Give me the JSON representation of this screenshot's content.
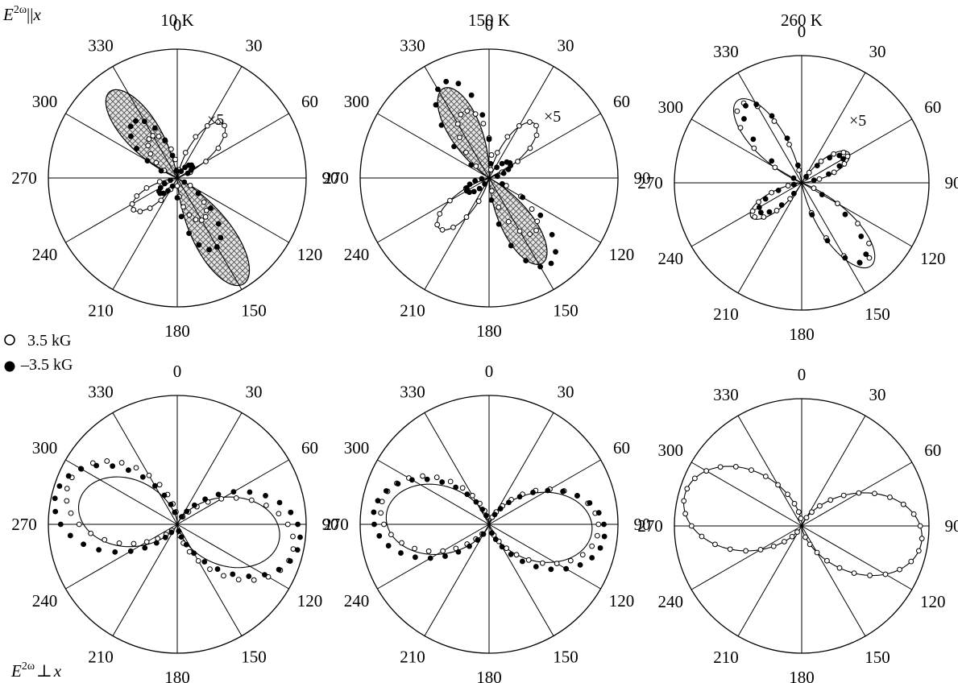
{
  "figure": {
    "row_labels": {
      "top": {
        "main": "E",
        "sup": "2ω",
        "rel": "||",
        "var": "x"
      },
      "bottom": {
        "main": "E",
        "sup": "2ω",
        "rel": "⊥",
        "var": "x"
      }
    },
    "legend": [
      {
        "label": "3.5 kG",
        "marker": "open-circle"
      },
      {
        "label": "–3.5 kG",
        "marker": "filled-circle"
      }
    ],
    "multiplier": "×5",
    "angle_ticks": [
      "0",
      "30",
      "60",
      "90",
      "120",
      "150",
      "180",
      "210",
      "240",
      "270",
      "300",
      "330"
    ]
  },
  "chart_data": [
    {
      "type": "polar",
      "panel": "top-10K",
      "title": "10 K",
      "polarization": "parallel",
      "annotation": "×5",
      "angles_deg": [
        0,
        30,
        60,
        90,
        120,
        150,
        180,
        210,
        240,
        270,
        300,
        330
      ],
      "theta_zero": "top",
      "theta_direction": "clockwise",
      "shape_model": "lobes",
      "series": [
        {
          "name": "3.5 kG",
          "marker": "open-circle",
          "lobes": [
            {
              "dir": 328,
              "amp": 0.38,
              "width": 38
            },
            {
              "dir": 40,
              "amp": 0.55,
              "width": 32
            },
            {
              "dir": 148,
              "amp": 0.38,
              "width": 38
            },
            {
              "dir": 235,
              "amp": 0.42,
              "width": 32
            }
          ]
        },
        {
          "name": "–3.5 kG",
          "marker": "filled-circle",
          "lobes": [
            {
              "dir": 322,
              "amp": 0.55,
              "width": 36
            },
            {
              "dir": 152,
              "amp": 0.62,
              "width": 36
            },
            {
              "dir": 50,
              "amp": 0.15,
              "width": 30
            },
            {
              "dir": 230,
              "amp": 0.18,
              "width": 30
            }
          ]
        }
      ],
      "fits": [
        {
          "style": "hatched",
          "lobes": [
            {
              "dir": 322,
              "amp": 0.85,
              "width": 30
            },
            {
              "dir": 148,
              "amp": 0.97,
              "width": 30
            }
          ]
        },
        {
          "style": "line",
          "lobes": [
            {
              "dir": 40,
              "amp": 0.55,
              "width": 30
            },
            {
              "dir": 235,
              "amp": 0.42,
              "width": 30
            }
          ]
        }
      ]
    },
    {
      "type": "polar",
      "panel": "top-150K",
      "title": "150 K",
      "polarization": "parallel",
      "annotation": "×5",
      "angles_deg": [
        0,
        30,
        60,
        90,
        120,
        150,
        180,
        210,
        240,
        270,
        300,
        330
      ],
      "theta_zero": "top",
      "theta_direction": "clockwise",
      "shape_model": "lobes",
      "series": [
        {
          "name": "3.5 kG",
          "marker": "open-circle",
          "lobes": [
            {
              "dir": 340,
              "amp": 0.55,
              "width": 36
            },
            {
              "dir": 40,
              "amp": 0.55,
              "width": 32
            },
            {
              "dir": 140,
              "amp": 0.55,
              "width": 34
            },
            {
              "dir": 225,
              "amp": 0.55,
              "width": 30
            }
          ]
        },
        {
          "name": "–3.5 kG",
          "marker": "filled-circle",
          "lobes": [
            {
              "dir": 335,
              "amp": 0.82,
              "width": 36
            },
            {
              "dir": 145,
              "amp": 0.82,
              "width": 36
            },
            {
              "dir": 55,
              "amp": 0.2,
              "width": 32
            },
            {
              "dir": 240,
              "amp": 0.2,
              "width": 32
            }
          ]
        }
      ],
      "fits": [
        {
          "style": "hatched",
          "lobes": [
            {
              "dir": 333,
              "amp": 0.78,
              "width": 30
            },
            {
              "dir": 148,
              "amp": 0.78,
              "width": 30
            }
          ]
        },
        {
          "style": "line",
          "lobes": [
            {
              "dir": 40,
              "amp": 0.55,
              "width": 30
            },
            {
              "dir": 225,
              "amp": 0.55,
              "width": 30
            }
          ]
        }
      ]
    },
    {
      "type": "polar",
      "panel": "top-260K",
      "title": "260 K",
      "polarization": "parallel",
      "annotation": "×5",
      "angles_deg": [
        0,
        30,
        60,
        90,
        120,
        150,
        180,
        210,
        240,
        270,
        300,
        330
      ],
      "theta_zero": "top",
      "theta_direction": "clockwise",
      "shape_model": "lobes",
      "series": [
        {
          "name": "3.5 kG",
          "marker": "open-circle",
          "lobes": [
            {
              "dir": 322,
              "amp": 0.78,
              "width": 30
            },
            {
              "dir": 140,
              "amp": 0.8,
              "width": 30
            },
            {
              "dir": 58,
              "amp": 0.42,
              "width": 28
            },
            {
              "dir": 236,
              "amp": 0.46,
              "width": 28
            }
          ]
        },
        {
          "name": "–3.5 kG",
          "marker": "filled-circle",
          "lobes": [
            {
              "dir": 325,
              "amp": 0.75,
              "width": 28
            },
            {
              "dir": 142,
              "amp": 0.78,
              "width": 28
            },
            {
              "dir": 58,
              "amp": 0.38,
              "width": 26
            },
            {
              "dir": 236,
              "amp": 0.4,
              "width": 26
            }
          ]
        }
      ],
      "fits": [
        {
          "style": "line",
          "lobes": [
            {
              "dir": 322,
              "amp": 0.82,
              "width": 30
            },
            {
              "dir": 140,
              "amp": 0.85,
              "width": 30
            },
            {
              "dir": 58,
              "amp": 0.44,
              "width": 28
            },
            {
              "dir": 236,
              "amp": 0.48,
              "width": 28
            }
          ]
        }
      ]
    },
    {
      "type": "polar",
      "panel": "bottom-10K",
      "title": "",
      "polarization": "perpendicular",
      "angles_deg": [
        0,
        30,
        60,
        90,
        120,
        150,
        180,
        210,
        240,
        270,
        300,
        330
      ],
      "theta_zero": "top",
      "theta_direction": "clockwise",
      "shape_model": "figure-eight",
      "series": [
        {
          "name": "3.5 kG",
          "marker": "open-circle",
          "lobes": [
            {
              "dir": 290,
              "amp": 0.9,
              "k": 2.7
            },
            {
              "dir": 103,
              "amp": 0.92,
              "k": 2.7
            }
          ]
        },
        {
          "name": "–3.5 kG",
          "marker": "filled-circle",
          "lobes": [
            {
              "dir": 283,
              "amp": 0.97,
              "k": 2.7
            },
            {
              "dir": 98,
              "amp": 0.96,
              "k": 2.7
            }
          ]
        }
      ],
      "fits": [
        {
          "style": "line",
          "lobes": [
            {
              "dir": 283,
              "amp": 0.78,
              "k": 2.7
            },
            {
              "dir": 98,
              "amp": 0.8,
              "k": 2.7
            }
          ]
        }
      ]
    },
    {
      "type": "polar",
      "panel": "bottom-150K",
      "title": "",
      "polarization": "perpendicular",
      "angles_deg": [
        0,
        30,
        60,
        90,
        120,
        150,
        180,
        210,
        240,
        270,
        300,
        330
      ],
      "theta_zero": "top",
      "theta_direction": "clockwise",
      "shape_model": "figure-eight",
      "series": [
        {
          "name": "3.5 kG",
          "marker": "open-circle",
          "lobes": [
            {
              "dir": 280,
              "amp": 0.85,
              "k": 2.7
            },
            {
              "dir": 92,
              "amp": 0.85,
              "k": 2.7
            }
          ]
        },
        {
          "name": "–3.5 kG",
          "marker": "filled-circle",
          "lobes": [
            {
              "dir": 275,
              "amp": 0.9,
              "k": 2.7
            },
            {
              "dir": 95,
              "amp": 0.9,
              "k": 2.7
            }
          ]
        }
      ],
      "fits": [
        {
          "style": "line",
          "lobes": [
            {
              "dir": 275,
              "amp": 0.8,
              "k": 2.7
            },
            {
              "dir": 93,
              "amp": 0.8,
              "k": 2.7
            }
          ]
        }
      ]
    },
    {
      "type": "polar",
      "panel": "bottom-260K",
      "title": "",
      "polarization": "perpendicular",
      "angles_deg": [
        0,
        30,
        60,
        90,
        120,
        150,
        180,
        210,
        240,
        270,
        300,
        330
      ],
      "theta_zero": "top",
      "theta_direction": "clockwise",
      "shape_model": "figure-eight",
      "series": [
        {
          "name": "3.5 kG",
          "marker": "open-circle",
          "lobes": [
            {
              "dir": 285,
              "amp": 0.95,
              "k": 2.7
            },
            {
              "dir": 97,
              "amp": 0.95,
              "k": 2.7
            }
          ]
        }
      ],
      "fits": [
        {
          "style": "line",
          "lobes": [
            {
              "dir": 285,
              "amp": 0.95,
              "k": 2.7
            },
            {
              "dir": 97,
              "amp": 0.95,
              "k": 2.7
            }
          ]
        }
      ]
    }
  ]
}
